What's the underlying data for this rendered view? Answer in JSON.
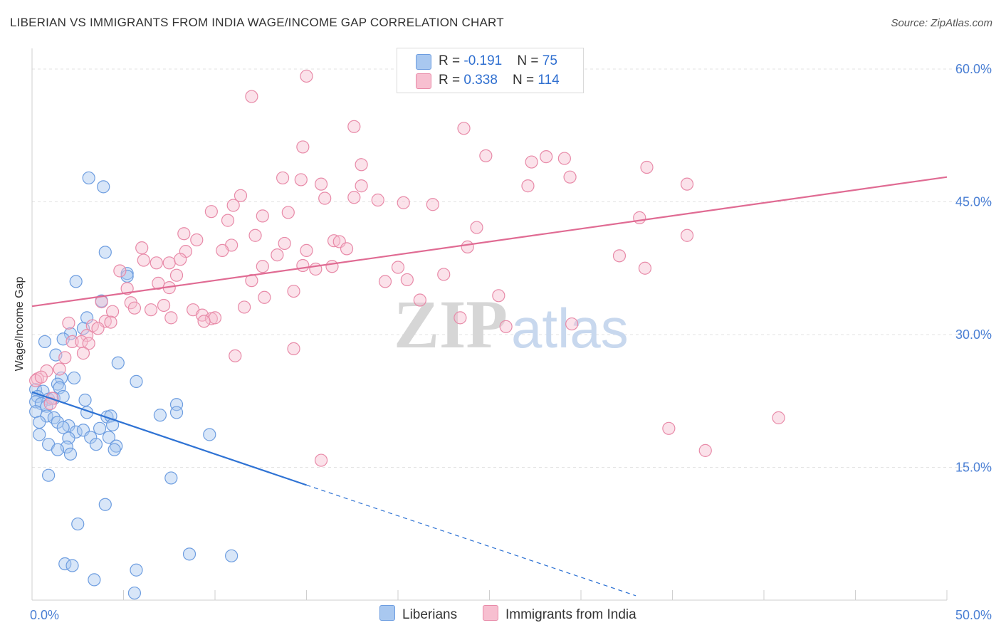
{
  "title": "LIBERIAN VS IMMIGRANTS FROM INDIA WAGE/INCOME GAP CORRELATION CHART",
  "source": "Source: ZipAtlas.com",
  "watermark": {
    "zip": "ZIP",
    "atlas": "atlas"
  },
  "legend": {
    "rows": [
      {
        "r_label": "R = ",
        "r_value": "-0.191",
        "n_label": "N = ",
        "n_value": "75",
        "color": "#a9c8f0",
        "border": "#6d9de0"
      },
      {
        "r_label": "R = ",
        "r_value": "0.338",
        "n_label": "N = ",
        "n_value": "114",
        "color": "#f7bfd0",
        "border": "#e88aa8"
      }
    ]
  },
  "bottom_legend": [
    {
      "label": "Liberians",
      "color": "#a9c8f0",
      "border": "#6d9de0"
    },
    {
      "label": "Immigrants from India",
      "color": "#f7bfd0",
      "border": "#e88aa8"
    }
  ],
  "chart_data": {
    "type": "scatter",
    "title": "LIBERIAN VS IMMIGRANTS FROM INDIA WAGE/INCOME GAP CORRELATION CHART",
    "xlabel": "",
    "ylabel": "Wage/Income Gap",
    "xlim": [
      0,
      50
    ],
    "ylim": [
      0,
      60
    ],
    "x_tick_labels": [
      {
        "value": 0,
        "label": "0.0%"
      },
      {
        "value": 50,
        "label": "50.0%"
      }
    ],
    "y_tick_labels": [
      {
        "value": 15,
        "label": "15.0%"
      },
      {
        "value": 30,
        "label": "30.0%"
      },
      {
        "value": 45,
        "label": "45.0%"
      },
      {
        "value": 60,
        "label": "60.0%"
      }
    ],
    "grid": true,
    "legend_position": "top-center",
    "series": [
      {
        "name": "Liberians",
        "color": "#6d9de0",
        "fill": "#a9c8f0",
        "r": -0.191,
        "n": 75,
        "trend": {
          "x": [
            0,
            15
          ],
          "y": [
            23.5,
            13.0
          ],
          "dashed_to": [
            33,
            0.5
          ]
        },
        "points": [
          [
            3.1,
            47.7
          ],
          [
            3.9,
            46.7
          ],
          [
            4.0,
            39.3
          ],
          [
            2.4,
            36.0
          ],
          [
            5.2,
            36.9
          ],
          [
            5.2,
            36.6
          ],
          [
            3.8,
            33.8
          ],
          [
            3.0,
            31.9
          ],
          [
            2.8,
            30.7
          ],
          [
            2.1,
            30.1
          ],
          [
            0.7,
            29.2
          ],
          [
            1.7,
            29.5
          ],
          [
            1.3,
            27.7
          ],
          [
            4.7,
            26.8
          ],
          [
            1.6,
            25.1
          ],
          [
            2.3,
            25.1
          ],
          [
            5.7,
            24.7
          ],
          [
            1.4,
            24.4
          ],
          [
            1.5,
            24.0
          ],
          [
            0.2,
            23.8
          ],
          [
            0.6,
            23.6
          ],
          [
            0.3,
            23.0
          ],
          [
            0.9,
            22.7
          ],
          [
            1.2,
            22.8
          ],
          [
            1.7,
            23.0
          ],
          [
            0.2,
            22.4
          ],
          [
            2.9,
            22.6
          ],
          [
            0.5,
            22.2
          ],
          [
            0.8,
            21.9
          ],
          [
            3.0,
            21.2
          ],
          [
            7.9,
            22.1
          ],
          [
            7.9,
            21.2
          ],
          [
            7.0,
            20.9
          ],
          [
            0.2,
            21.3
          ],
          [
            0.8,
            20.8
          ],
          [
            1.2,
            20.6
          ],
          [
            4.1,
            20.7
          ],
          [
            4.3,
            20.8
          ],
          [
            0.4,
            20.1
          ],
          [
            1.4,
            20.1
          ],
          [
            2.0,
            19.7
          ],
          [
            1.7,
            19.5
          ],
          [
            2.4,
            19.0
          ],
          [
            2.8,
            19.2
          ],
          [
            4.4,
            19.8
          ],
          [
            3.7,
            19.4
          ],
          [
            0.4,
            18.7
          ],
          [
            9.7,
            18.7
          ],
          [
            2.0,
            18.3
          ],
          [
            3.2,
            18.4
          ],
          [
            4.2,
            18.4
          ],
          [
            0.9,
            17.6
          ],
          [
            3.5,
            17.6
          ],
          [
            4.6,
            17.4
          ],
          [
            4.5,
            17.0
          ],
          [
            1.9,
            17.3
          ],
          [
            1.4,
            17.0
          ],
          [
            2.1,
            16.5
          ],
          [
            0.9,
            14.1
          ],
          [
            7.6,
            13.8
          ],
          [
            4.0,
            10.8
          ],
          [
            2.5,
            8.6
          ],
          [
            8.6,
            5.2
          ],
          [
            10.9,
            5.0
          ],
          [
            1.8,
            4.1
          ],
          [
            2.2,
            3.9
          ],
          [
            5.7,
            3.4
          ],
          [
            3.4,
            2.3
          ],
          [
            5.6,
            0.8
          ]
        ]
      },
      {
        "name": "Immigrants from India",
        "color": "#e88aa8",
        "fill": "#f7bfd0",
        "r": 0.338,
        "n": 114,
        "trend": {
          "x": [
            0,
            50
          ],
          "y": [
            33.2,
            47.8
          ]
        },
        "points": [
          [
            15.0,
            59.2
          ],
          [
            12.0,
            56.9
          ],
          [
            17.6,
            53.5
          ],
          [
            23.6,
            53.3
          ],
          [
            14.8,
            51.2
          ],
          [
            24.8,
            50.2
          ],
          [
            28.1,
            50.1
          ],
          [
            29.1,
            49.9
          ],
          [
            18.0,
            49.2
          ],
          [
            27.3,
            49.5
          ],
          [
            33.6,
            48.9
          ],
          [
            13.7,
            47.7
          ],
          [
            14.7,
            47.5
          ],
          [
            29.4,
            47.8
          ],
          [
            15.8,
            47.0
          ],
          [
            18.0,
            46.8
          ],
          [
            27.1,
            46.8
          ],
          [
            35.8,
            47.0
          ],
          [
            11.4,
            45.7
          ],
          [
            16.0,
            45.4
          ],
          [
            17.6,
            45.5
          ],
          [
            18.9,
            45.2
          ],
          [
            20.3,
            44.9
          ],
          [
            21.9,
            44.7
          ],
          [
            11.0,
            44.6
          ],
          [
            9.8,
            43.9
          ],
          [
            14.0,
            43.8
          ],
          [
            12.6,
            43.4
          ],
          [
            10.7,
            42.9
          ],
          [
            33.2,
            43.2
          ],
          [
            24.3,
            42.1
          ],
          [
            8.3,
            41.4
          ],
          [
            12.2,
            41.2
          ],
          [
            35.8,
            41.2
          ],
          [
            9.0,
            40.7
          ],
          [
            16.5,
            40.6
          ],
          [
            16.8,
            40.5
          ],
          [
            10.9,
            40.1
          ],
          [
            13.8,
            40.3
          ],
          [
            17.2,
            39.7
          ],
          [
            23.8,
            39.9
          ],
          [
            6.0,
            39.8
          ],
          [
            10.4,
            39.5
          ],
          [
            15.0,
            39.5
          ],
          [
            8.4,
            39.4
          ],
          [
            13.4,
            39.0
          ],
          [
            32.1,
            38.9
          ],
          [
            6.1,
            38.4
          ],
          [
            7.5,
            38.1
          ],
          [
            8.1,
            38.5
          ],
          [
            6.8,
            38.1
          ],
          [
            12.6,
            37.7
          ],
          [
            14.8,
            37.8
          ],
          [
            15.5,
            37.4
          ],
          [
            16.4,
            37.7
          ],
          [
            20.0,
            37.6
          ],
          [
            33.5,
            37.5
          ],
          [
            4.8,
            37.2
          ],
          [
            7.9,
            36.7
          ],
          [
            22.5,
            36.8
          ],
          [
            12.0,
            36.1
          ],
          [
            19.3,
            36.0
          ],
          [
            20.5,
            36.2
          ],
          [
            6.9,
            35.8
          ],
          [
            7.5,
            35.3
          ],
          [
            5.2,
            35.2
          ],
          [
            14.3,
            34.9
          ],
          [
            12.7,
            34.2
          ],
          [
            21.2,
            33.9
          ],
          [
            25.5,
            34.4
          ],
          [
            3.8,
            33.7
          ],
          [
            5.4,
            33.6
          ],
          [
            7.2,
            33.3
          ],
          [
            11.6,
            33.1
          ],
          [
            4.4,
            32.6
          ],
          [
            5.6,
            33.0
          ],
          [
            6.5,
            32.8
          ],
          [
            8.8,
            32.8
          ],
          [
            9.3,
            32.2
          ],
          [
            9.8,
            31.8
          ],
          [
            10.0,
            31.9
          ],
          [
            7.6,
            31.9
          ],
          [
            9.4,
            31.5
          ],
          [
            4.0,
            31.5
          ],
          [
            4.3,
            31.4
          ],
          [
            2.0,
            31.3
          ],
          [
            3.3,
            31.0
          ],
          [
            3.6,
            30.7
          ],
          [
            29.5,
            31.2
          ],
          [
            25.9,
            30.9
          ],
          [
            3.0,
            29.9
          ],
          [
            2.2,
            29.2
          ],
          [
            2.7,
            29.2
          ],
          [
            3.1,
            29.0
          ],
          [
            2.8,
            27.9
          ],
          [
            1.8,
            27.4
          ],
          [
            11.1,
            27.6
          ],
          [
            14.3,
            28.4
          ],
          [
            1.5,
            26.1
          ],
          [
            0.8,
            25.9
          ],
          [
            0.3,
            25.0
          ],
          [
            0.2,
            24.8
          ],
          [
            0.5,
            25.2
          ],
          [
            1.1,
            22.8
          ],
          [
            1.0,
            22.2
          ],
          [
            40.8,
            20.6
          ],
          [
            34.8,
            19.4
          ],
          [
            36.8,
            16.9
          ],
          [
            15.8,
            15.8
          ],
          [
            23.4,
            31.9
          ]
        ]
      }
    ]
  }
}
